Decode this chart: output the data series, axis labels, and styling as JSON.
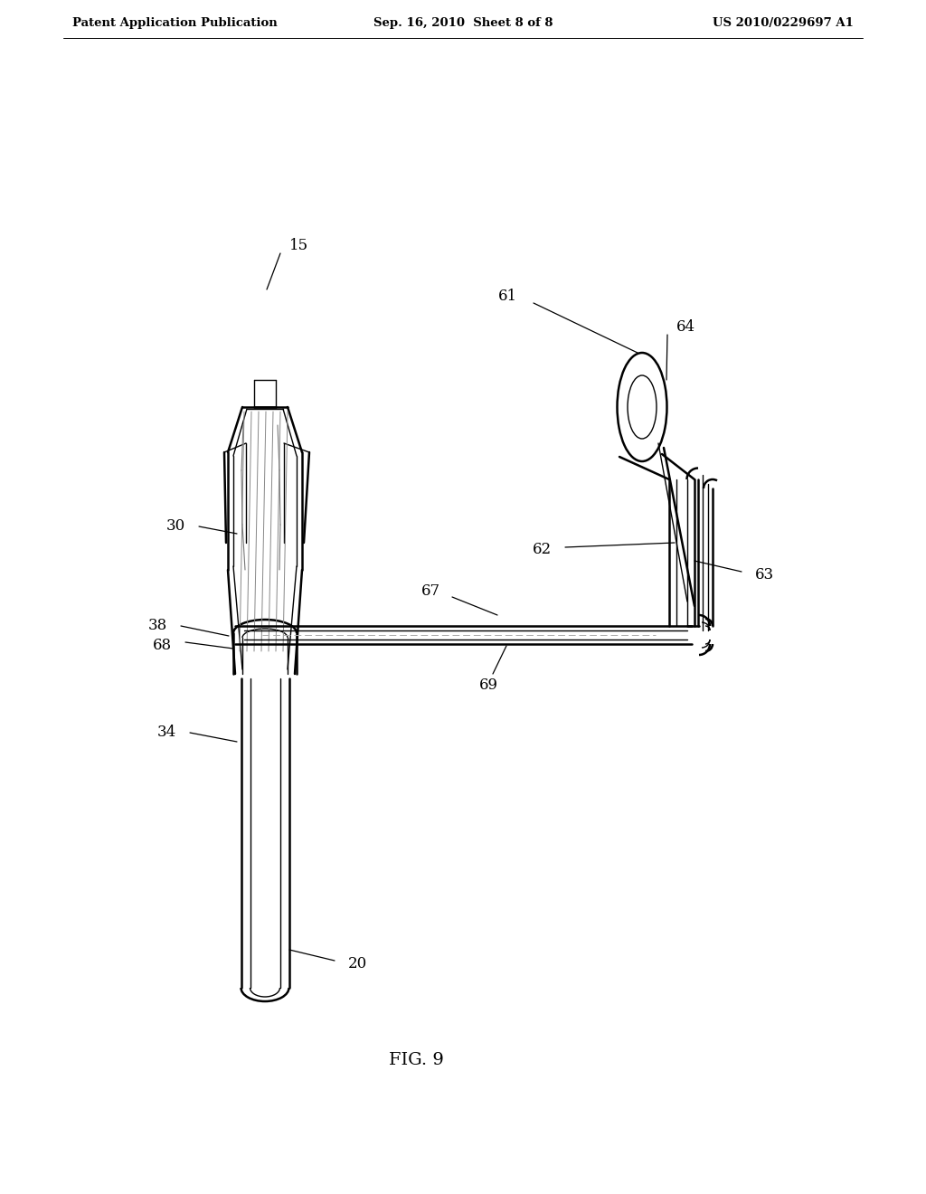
{
  "background_color": "#ffffff",
  "line_color": "#000000",
  "header_left": "Patent Application Publication",
  "header_mid": "Sep. 16, 2010  Sheet 8 of 8",
  "header_right": "US 2010/0229697 A1",
  "fig_label": "FIG. 9",
  "lw_outer": 1.8,
  "lw_inner": 1.0,
  "lw_detail": 0.6,
  "label_fontsize": 12,
  "header_fontsize": 9.5
}
